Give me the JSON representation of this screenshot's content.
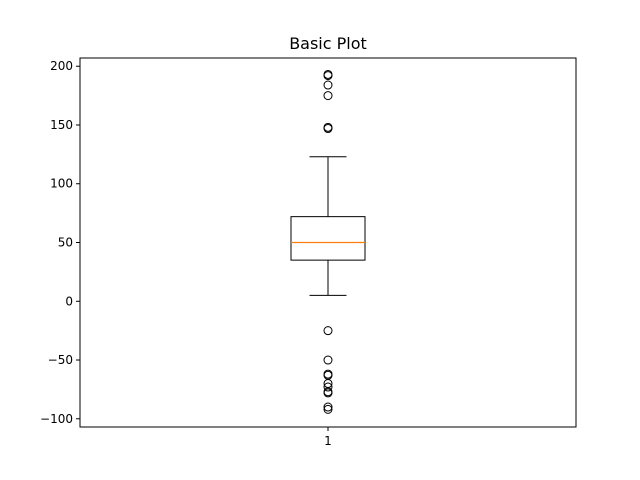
{
  "chart_data": {
    "type": "box",
    "title": "Basic Plot",
    "xlabel": "",
    "ylabel": "",
    "categories": [
      "1"
    ],
    "ylim": [
      -107,
      207
    ],
    "yticks": [
      -100,
      -50,
      0,
      50,
      100,
      150,
      200
    ],
    "grid": false,
    "boxes": [
      {
        "category": "1",
        "whisker_low": 5,
        "q1": 35,
        "median": 50,
        "q3": 72,
        "whisker_high": 123,
        "fliers": [
          193,
          192,
          184,
          175,
          148,
          147,
          -25,
          -50,
          -62,
          -63,
          -70,
          -73,
          -77,
          -78,
          -90,
          -92
        ]
      }
    ],
    "colors": {
      "box": "#000000",
      "median": "#ff7f0e",
      "flier": "#000000"
    }
  }
}
